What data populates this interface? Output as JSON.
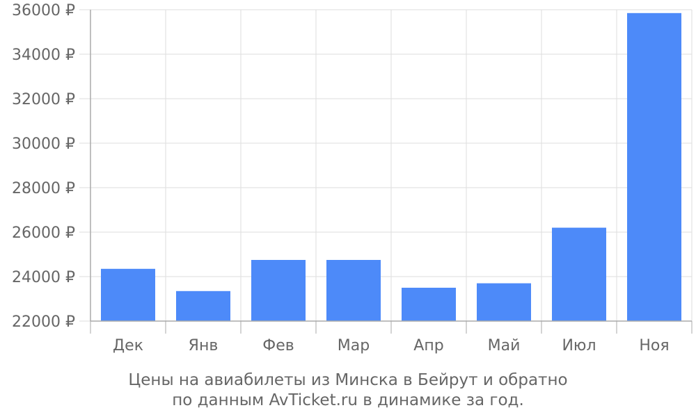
{
  "chart_data": {
    "type": "bar",
    "categories": [
      "Дек",
      "Янв",
      "Фев",
      "Мар",
      "Апр",
      "Май",
      "Июл",
      "Ноя"
    ],
    "values": [
      24350,
      23350,
      24750,
      24750,
      23500,
      23700,
      26200,
      35850
    ],
    "ylim": [
      22000,
      36000
    ],
    "yticks": [
      "22000 ₽",
      "24000 ₽",
      "26000 ₽",
      "28000 ₽",
      "30000 ₽",
      "32000 ₽",
      "34000 ₽",
      "36000 ₽"
    ],
    "ytick_values": [
      22000,
      24000,
      26000,
      28000,
      30000,
      32000,
      34000,
      36000
    ],
    "grid": true,
    "bar_color": "#4d8af9",
    "caption_line1": "Цены на авиабилеты из Минска в Бейрут и обратно",
    "caption_line2": "по данным AvTicket.ru в динамике за год."
  }
}
